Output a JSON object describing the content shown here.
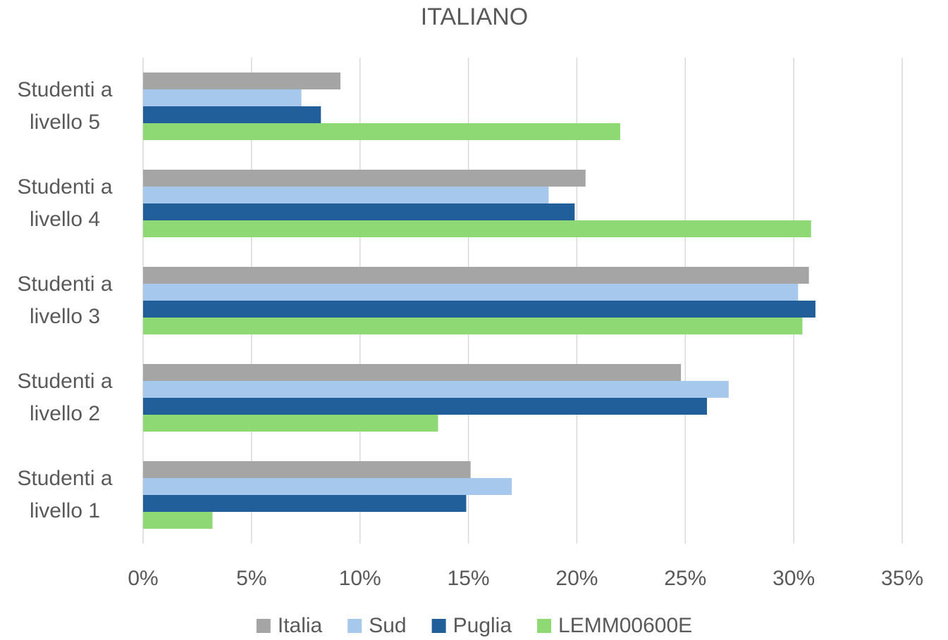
{
  "chart_data": {
    "type": "bar",
    "orientation": "horizontal",
    "title": "ITALIANO",
    "categories": [
      "Studenti a livello 5",
      "Studenti a livello 4",
      "Studenti a livello 3",
      "Studenti a livello 2",
      "Studenti a livello 1"
    ],
    "series": [
      {
        "name": "Italia",
        "color": "#a5a5a5",
        "values": [
          9.1,
          20.4,
          30.7,
          24.8,
          15.1
        ]
      },
      {
        "name": "Sud",
        "color": "#a6c8ec",
        "values": [
          7.3,
          18.7,
          30.2,
          27.0,
          17.0
        ]
      },
      {
        "name": "Puglia",
        "color": "#215f9a",
        "values": [
          8.2,
          19.9,
          31.0,
          26.0,
          14.9
        ]
      },
      {
        "name": "LEMM00600E",
        "color": "#8ed973",
        "values": [
          22.0,
          30.8,
          30.4,
          13.6,
          3.2
        ]
      }
    ],
    "xlim": [
      0,
      35
    ],
    "xticks": [
      {
        "value": 0,
        "label": "0%"
      },
      {
        "value": 5,
        "label": "5%"
      },
      {
        "value": 10,
        "label": "10%"
      },
      {
        "value": 15,
        "label": "15%"
      },
      {
        "value": 20,
        "label": "20%"
      },
      {
        "value": 25,
        "label": "25%"
      },
      {
        "value": 30,
        "label": "30%"
      },
      {
        "value": 35,
        "label": "35%"
      }
    ],
    "grid": true,
    "legend": "bottom"
  }
}
